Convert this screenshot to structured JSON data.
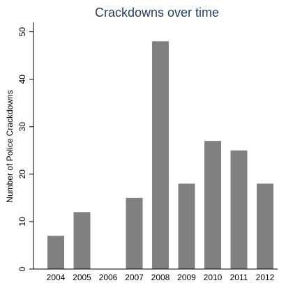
{
  "chart_data": {
    "type": "bar",
    "title": "Crackdowns over time",
    "xlabel": "",
    "ylabel": "Number of Police Crackdowns",
    "categories": [
      "2004",
      "2005",
      "2006",
      "2007",
      "2008",
      "2009",
      "2010",
      "2011",
      "2012"
    ],
    "values": [
      7,
      12,
      0,
      15,
      48,
      18,
      27,
      25,
      18
    ],
    "yticks": [
      "0",
      "10",
      "20",
      "30",
      "40",
      "50"
    ],
    "ylim": [
      0,
      52
    ],
    "grid": false,
    "legend": "none",
    "colors": {
      "bar": "#808080",
      "title": "#1f3f66",
      "axis": "#000000",
      "background": "#ffffff"
    }
  }
}
